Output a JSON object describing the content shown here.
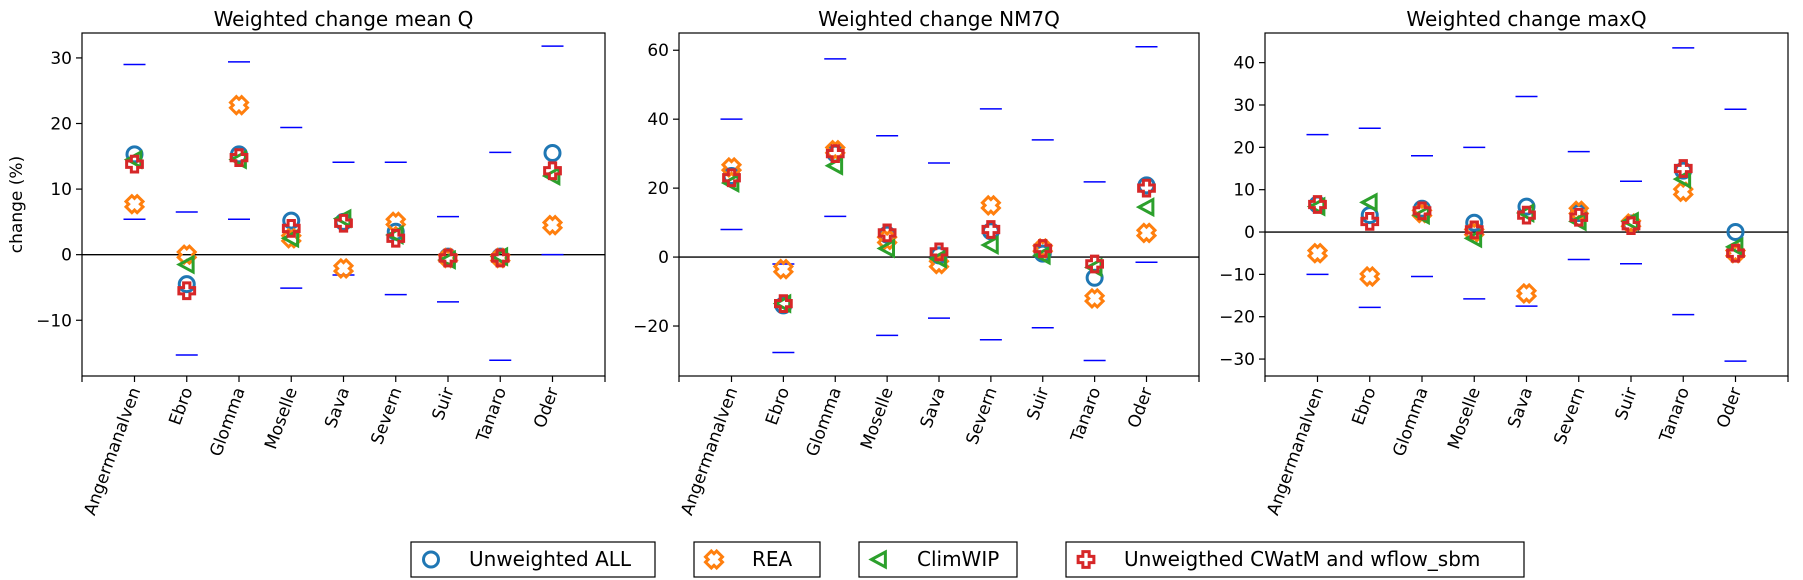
{
  "colors": {
    "unweighted_all": "#1f77b4",
    "rea": "#ff7f0e",
    "climwip": "#2ca02c",
    "cwatm_wflow": "#d62728",
    "range": "#0000ff",
    "zero_line": "#000000"
  },
  "legend": {
    "items": [
      {
        "label": "Unweighted ALL",
        "marker": "circle",
        "color": "#1f77b4"
      },
      {
        "label": "REA",
        "marker": "x-cross",
        "color": "#ff7f0e"
      },
      {
        "label": "ClimWIP",
        "marker": "triangle-left",
        "color": "#2ca02c"
      },
      {
        "label": "Unweigthed CWatM and wflow_sbm",
        "marker": "plus",
        "color": "#d62728"
      }
    ]
  },
  "chart_data": [
    {
      "type": "scatter",
      "title": "Weighted change mean Q",
      "ylabel": "change (%)",
      "ylim": [
        -18.5,
        33.8
      ],
      "yticks": [
        -10,
        0,
        10,
        20,
        30
      ],
      "categories": [
        "Angermanalven",
        "Ebro",
        "Glomma",
        "Moselle",
        "Sava",
        "Severn",
        "Suir",
        "Tanaro",
        "Oder"
      ],
      "series": [
        {
          "name": "Unweighted ALL",
          "values": [
            15.3,
            -4.5,
            15.3,
            5.2,
            5.0,
            3.5,
            -0.3,
            -0.3,
            15.5
          ]
        },
        {
          "name": "REA",
          "values": [
            7.7,
            0.0,
            22.8,
            2.5,
            -2.1,
            5.0,
            -0.5,
            -0.5,
            4.5
          ]
        },
        {
          "name": "ClimWIP",
          "values": [
            14.5,
            -1.5,
            14.5,
            2.5,
            5.5,
            3.0,
            -0.8,
            -0.3,
            12.0
          ]
        },
        {
          "name": "Unweigthed CWatM and wflow_sbm",
          "values": [
            13.8,
            -5.5,
            14.8,
            4.0,
            4.8,
            2.5,
            -0.5,
            -0.5,
            12.8
          ]
        }
      ],
      "upper": [
        29.0,
        6.5,
        29.4,
        19.4,
        14.1,
        14.1,
        5.8,
        15.6,
        31.8
      ],
      "lower": [
        5.4,
        -15.3,
        5.4,
        -5.1,
        -3.1,
        -6.1,
        -7.2,
        -16.1,
        0.0
      ]
    },
    {
      "type": "scatter",
      "title": "Weighted change NM7Q",
      "ylabel": "",
      "ylim": [
        -34.5,
        65.0
      ],
      "yticks": [
        -20,
        0,
        20,
        40,
        60
      ],
      "categories": [
        "Angermanalven",
        "Ebro",
        "Glomma",
        "Moselle",
        "Sava",
        "Severn",
        "Suir",
        "Tanaro",
        "Oder"
      ],
      "series": [
        {
          "name": "Unweighted ALL",
          "values": [
            23.5,
            -14.0,
            30.0,
            6.5,
            0.5,
            7.5,
            1.0,
            -6.0,
            20.8
          ]
        },
        {
          "name": "REA",
          "values": [
            26.0,
            -3.5,
            31.0,
            5.0,
            -2.0,
            15.0,
            2.5,
            -12.0,
            7.0
          ]
        },
        {
          "name": "ClimWIP",
          "values": [
            21.5,
            -13.5,
            26.5,
            2.5,
            -0.5,
            3.5,
            0.5,
            -3.0,
            14.5
          ]
        },
        {
          "name": "Unweigthed CWatM and wflow_sbm",
          "values": [
            23.0,
            -13.5,
            30.0,
            7.0,
            1.5,
            8.0,
            2.5,
            -2.0,
            20.0
          ]
        }
      ],
      "upper": [
        40.0,
        -2.0,
        57.5,
        35.2,
        27.3,
        43.0,
        34.0,
        21.8,
        61.0
      ],
      "lower": [
        8.0,
        -27.7,
        11.8,
        -22.7,
        -17.7,
        -24.0,
        -20.5,
        -30.0,
        -1.5
      ]
    },
    {
      "type": "scatter",
      "title": "Weighted change maxQ",
      "ylabel": "",
      "ylim": [
        -34.0,
        47.0
      ],
      "yticks": [
        -30,
        -20,
        -10,
        0,
        10,
        20,
        30,
        40
      ],
      "categories": [
        "Angermanalven",
        "Ebro",
        "Glomma",
        "Moselle",
        "Sava",
        "Severn",
        "Suir",
        "Tanaro",
        "Oder"
      ],
      "series": [
        {
          "name": "Unweighted ALL",
          "values": [
            6.5,
            4.0,
            5.5,
            2.2,
            6.0,
            4.5,
            2.0,
            14.5,
            0.0
          ]
        },
        {
          "name": "REA",
          "values": [
            -5.0,
            -10.5,
            4.5,
            0.0,
            -14.5,
            5.0,
            2.0,
            9.5,
            -5.0
          ]
        },
        {
          "name": "ClimWIP",
          "values": [
            6.0,
            7.0,
            4.0,
            -1.5,
            4.5,
            2.5,
            2.5,
            12.5,
            -3.5
          ]
        },
        {
          "name": "Unweigthed CWatM and wflow_sbm",
          "values": [
            6.5,
            2.5,
            5.0,
            0.5,
            4.0,
            3.5,
            1.5,
            15.0,
            -5.0
          ]
        }
      ],
      "upper": [
        23.0,
        24.5,
        18.0,
        20.0,
        32.0,
        19.0,
        12.0,
        43.5,
        29.0
      ],
      "lower": [
        -10.0,
        -17.8,
        -10.5,
        -15.8,
        -17.5,
        -6.5,
        -7.5,
        -19.5,
        -30.5
      ]
    }
  ]
}
